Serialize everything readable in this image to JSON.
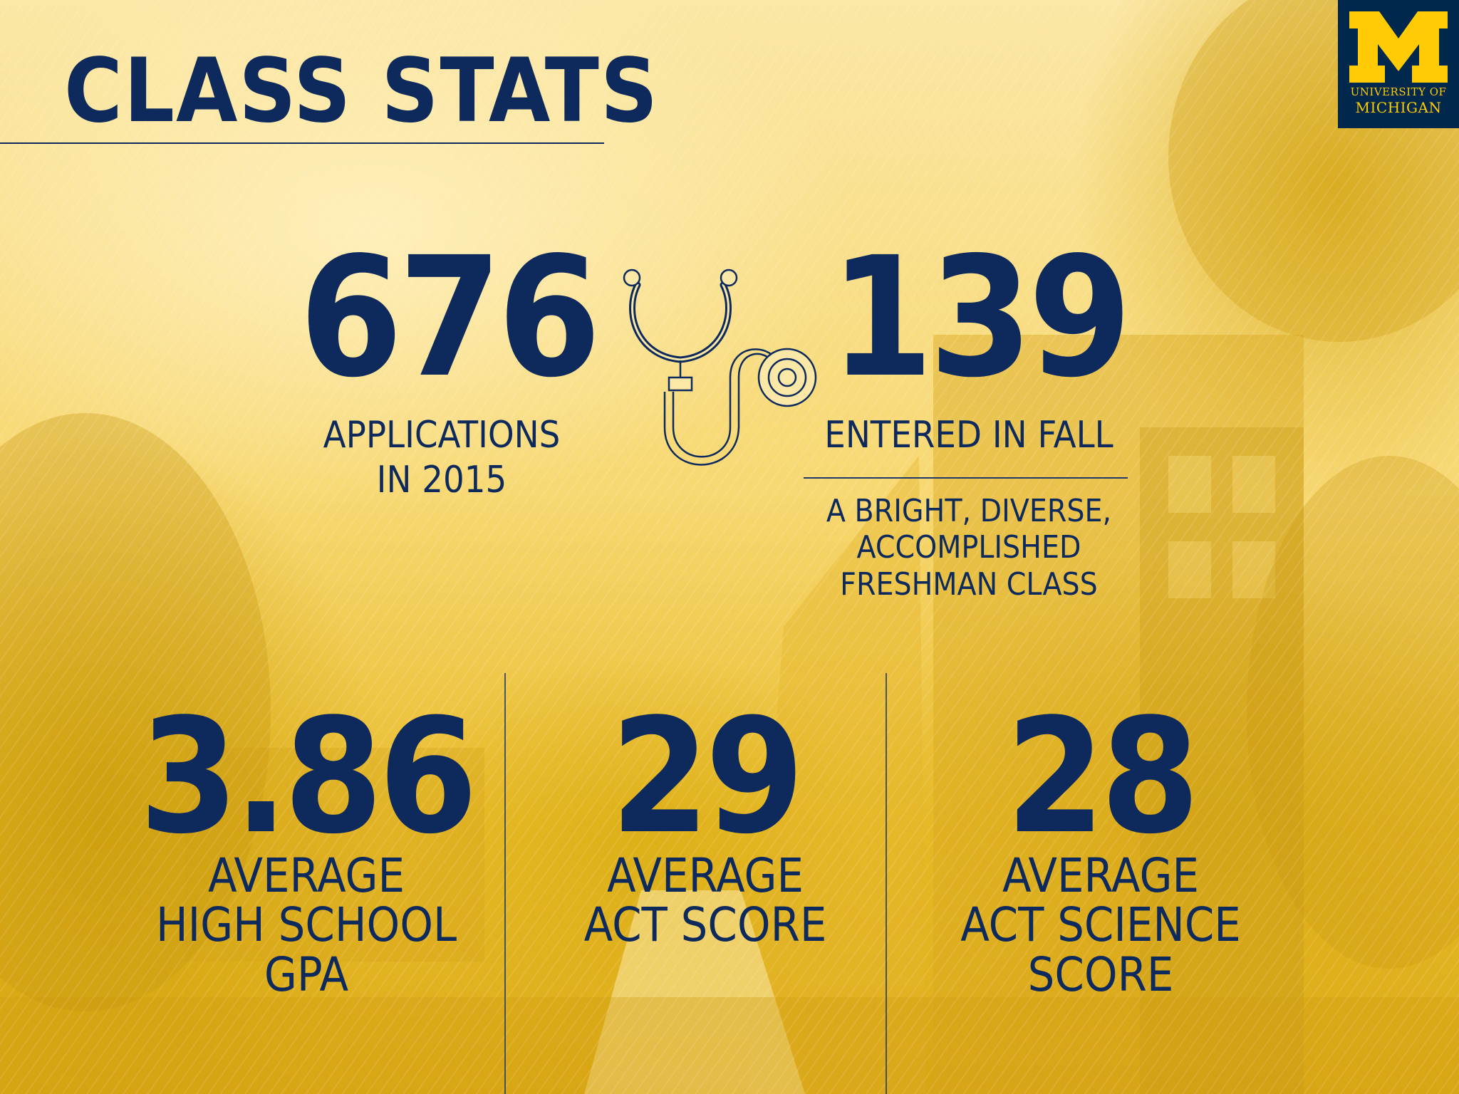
{
  "title": "CLASS STATS",
  "logo": {
    "icon": "block-m-logo",
    "line1": "UNIVERSITY OF",
    "line2": "MICHIGAN"
  },
  "stats": {
    "applications": {
      "value": "676",
      "label": "APPLICATIONS\nIN 2015"
    },
    "entered": {
      "value": "139",
      "label": "ENTERED IN FALL",
      "note": "A BRIGHT, DIVERSE,\nACCOMPLISHED\nFRESHMAN  CLASS"
    },
    "gpa": {
      "value": "3.86",
      "label": "AVERAGE\nHIGH SCHOOL\nGPA"
    },
    "act": {
      "value": "29",
      "label": "AVERAGE\nACT SCORE"
    },
    "act_science": {
      "value": "28",
      "label": "AVERAGE\nACT SCIENCE\nSCORE"
    }
  },
  "icons": {
    "center": "stethoscope-icon"
  },
  "colors": {
    "navy": "#0e2a5c",
    "maize": "#ffcb05",
    "background": "#f7d872"
  }
}
